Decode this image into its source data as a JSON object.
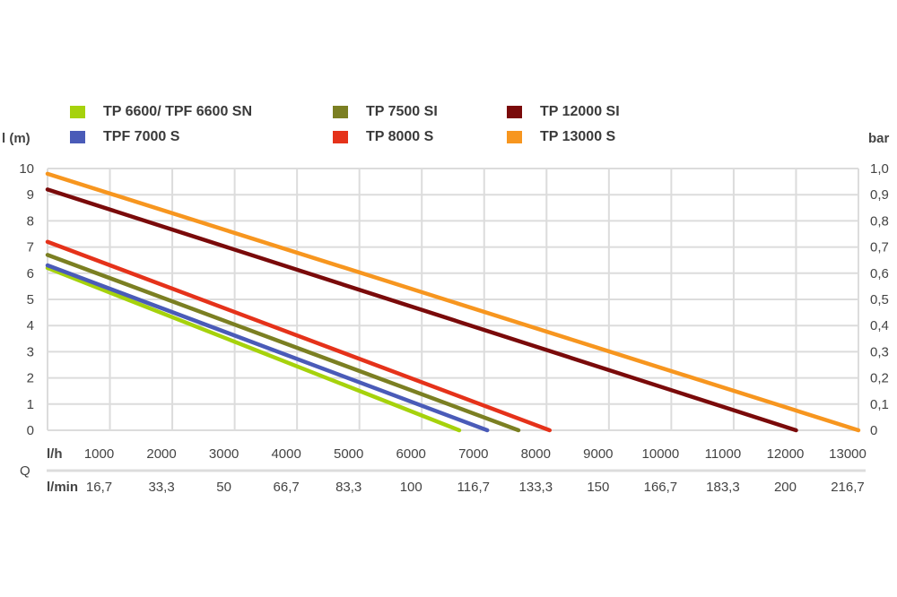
{
  "chart_data": {
    "type": "line",
    "title": "",
    "ylabel_left": "l (m)",
    "ylabel_right": "bar",
    "xlabel": "Q",
    "x_row_labels": [
      "l/h",
      "l/min"
    ],
    "xlim": [
      0,
      13000
    ],
    "ylim": [
      0,
      10
    ],
    "ylim_right": [
      0,
      1.0
    ],
    "grid": true,
    "legend_position": "top",
    "x_ticks_lh": [
      "1000",
      "2000",
      "3000",
      "4000",
      "5000",
      "6000",
      "7000",
      "8000",
      "9000",
      "10000",
      "11000",
      "12000",
      "13000"
    ],
    "x_ticks_lmin": [
      "16,7",
      "33,3",
      "50",
      "66,7",
      "83,3",
      "100",
      "116,7",
      "133,3",
      "150",
      "166,7",
      "183,3",
      "200",
      "216,7"
    ],
    "y_ticks_left": [
      "0",
      "1",
      "2",
      "3",
      "4",
      "5",
      "6",
      "7",
      "8",
      "9",
      "10"
    ],
    "y_ticks_right": [
      "0",
      "0,1",
      "0,2",
      "0,3",
      "0,4",
      "0,5",
      "0,6",
      "0,7",
      "0,8",
      "0,9",
      "1,0"
    ],
    "series": [
      {
        "name": "TP 6600/ TPF 6600 SN",
        "color": "#a6d20c",
        "points": [
          [
            0,
            6.2
          ],
          [
            6600,
            0
          ]
        ]
      },
      {
        "name": "TPF 7000 S",
        "color": "#4a5bb8",
        "points": [
          [
            0,
            6.3
          ],
          [
            7050,
            0
          ]
        ]
      },
      {
        "name": "TP 7500 SI",
        "color": "#7b7f22",
        "points": [
          [
            0,
            6.7
          ],
          [
            7550,
            0
          ]
        ]
      },
      {
        "name": "TP 8000 S",
        "color": "#e5321a",
        "points": [
          [
            0,
            7.2
          ],
          [
            8050,
            0
          ]
        ]
      },
      {
        "name": "TP 12000 SI",
        "color": "#7a0a0a",
        "points": [
          [
            0,
            9.2
          ],
          [
            12000,
            0
          ]
        ]
      },
      {
        "name": "TP 13000 S",
        "color": "#f7961f",
        "points": [
          [
            0,
            9.8
          ],
          [
            13000,
            0
          ]
        ]
      }
    ]
  }
}
